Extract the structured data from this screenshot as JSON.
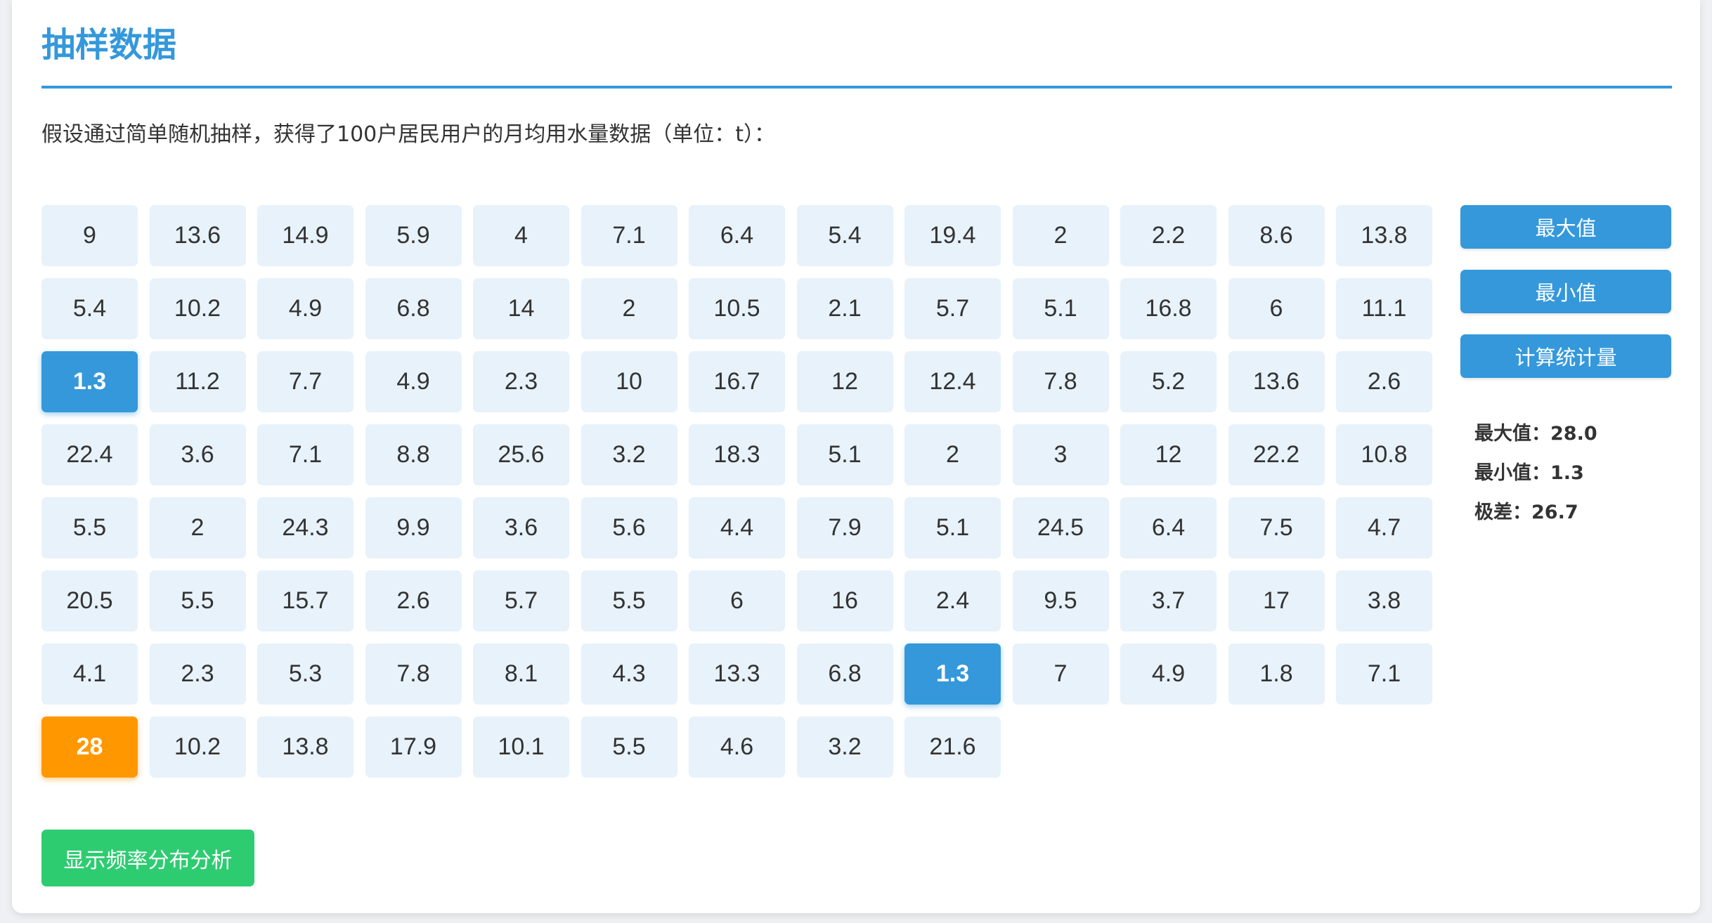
{
  "header": {
    "title": "抽样数据",
    "description": "假设通过简单随机抽样，获得了100户居民用户的月均用水量数据（单位：t）："
  },
  "colors": {
    "accent": "#3498db",
    "max_highlight": "#ff9800",
    "cell_bg": "#e8f2fa",
    "analysis_button": "#2ecc71"
  },
  "data_grid": {
    "columns": 13,
    "cells": [
      {
        "value": "9",
        "state": "normal"
      },
      {
        "value": "13.6",
        "state": "normal"
      },
      {
        "value": "14.9",
        "state": "normal"
      },
      {
        "value": "5.9",
        "state": "normal"
      },
      {
        "value": "4",
        "state": "normal"
      },
      {
        "value": "7.1",
        "state": "normal"
      },
      {
        "value": "6.4",
        "state": "normal"
      },
      {
        "value": "5.4",
        "state": "normal"
      },
      {
        "value": "19.4",
        "state": "normal"
      },
      {
        "value": "2",
        "state": "normal"
      },
      {
        "value": "2.2",
        "state": "normal"
      },
      {
        "value": "8.6",
        "state": "normal"
      },
      {
        "value": "13.8",
        "state": "normal"
      },
      {
        "value": "5.4",
        "state": "normal"
      },
      {
        "value": "10.2",
        "state": "normal"
      },
      {
        "value": "4.9",
        "state": "normal"
      },
      {
        "value": "6.8",
        "state": "normal"
      },
      {
        "value": "14",
        "state": "normal"
      },
      {
        "value": "2",
        "state": "normal"
      },
      {
        "value": "10.5",
        "state": "normal"
      },
      {
        "value": "2.1",
        "state": "normal"
      },
      {
        "value": "5.7",
        "state": "normal"
      },
      {
        "value": "5.1",
        "state": "normal"
      },
      {
        "value": "16.8",
        "state": "normal"
      },
      {
        "value": "6",
        "state": "normal"
      },
      {
        "value": "11.1",
        "state": "normal"
      },
      {
        "value": "1.3",
        "state": "min"
      },
      {
        "value": "11.2",
        "state": "normal"
      },
      {
        "value": "7.7",
        "state": "normal"
      },
      {
        "value": "4.9",
        "state": "normal"
      },
      {
        "value": "2.3",
        "state": "normal"
      },
      {
        "value": "10",
        "state": "normal"
      },
      {
        "value": "16.7",
        "state": "normal"
      },
      {
        "value": "12",
        "state": "normal"
      },
      {
        "value": "12.4",
        "state": "normal"
      },
      {
        "value": "7.8",
        "state": "normal"
      },
      {
        "value": "5.2",
        "state": "normal"
      },
      {
        "value": "13.6",
        "state": "normal"
      },
      {
        "value": "2.6",
        "state": "normal"
      },
      {
        "value": "22.4",
        "state": "normal"
      },
      {
        "value": "3.6",
        "state": "normal"
      },
      {
        "value": "7.1",
        "state": "normal"
      },
      {
        "value": "8.8",
        "state": "normal"
      },
      {
        "value": "25.6",
        "state": "normal"
      },
      {
        "value": "3.2",
        "state": "normal"
      },
      {
        "value": "18.3",
        "state": "normal"
      },
      {
        "value": "5.1",
        "state": "normal"
      },
      {
        "value": "2",
        "state": "normal"
      },
      {
        "value": "3",
        "state": "normal"
      },
      {
        "value": "12",
        "state": "normal"
      },
      {
        "value": "22.2",
        "state": "normal"
      },
      {
        "value": "10.8",
        "state": "normal"
      },
      {
        "value": "5.5",
        "state": "normal"
      },
      {
        "value": "2",
        "state": "normal"
      },
      {
        "value": "24.3",
        "state": "normal"
      },
      {
        "value": "9.9",
        "state": "normal"
      },
      {
        "value": "3.6",
        "state": "normal"
      },
      {
        "value": "5.6",
        "state": "normal"
      },
      {
        "value": "4.4",
        "state": "normal"
      },
      {
        "value": "7.9",
        "state": "normal"
      },
      {
        "value": "5.1",
        "state": "normal"
      },
      {
        "value": "24.5",
        "state": "normal"
      },
      {
        "value": "6.4",
        "state": "normal"
      },
      {
        "value": "7.5",
        "state": "normal"
      },
      {
        "value": "4.7",
        "state": "normal"
      },
      {
        "value": "20.5",
        "state": "normal"
      },
      {
        "value": "5.5",
        "state": "normal"
      },
      {
        "value": "15.7",
        "state": "normal"
      },
      {
        "value": "2.6",
        "state": "normal"
      },
      {
        "value": "5.7",
        "state": "normal"
      },
      {
        "value": "5.5",
        "state": "normal"
      },
      {
        "value": "6",
        "state": "normal"
      },
      {
        "value": "16",
        "state": "normal"
      },
      {
        "value": "2.4",
        "state": "normal"
      },
      {
        "value": "9.5",
        "state": "normal"
      },
      {
        "value": "3.7",
        "state": "normal"
      },
      {
        "value": "17",
        "state": "normal"
      },
      {
        "value": "3.8",
        "state": "normal"
      },
      {
        "value": "4.1",
        "state": "normal"
      },
      {
        "value": "2.3",
        "state": "normal"
      },
      {
        "value": "5.3",
        "state": "normal"
      },
      {
        "value": "7.8",
        "state": "normal"
      },
      {
        "value": "8.1",
        "state": "normal"
      },
      {
        "value": "4.3",
        "state": "normal"
      },
      {
        "value": "13.3",
        "state": "normal"
      },
      {
        "value": "6.8",
        "state": "normal"
      },
      {
        "value": "1.3",
        "state": "min"
      },
      {
        "value": "7",
        "state": "normal"
      },
      {
        "value": "4.9",
        "state": "normal"
      },
      {
        "value": "1.8",
        "state": "normal"
      },
      {
        "value": "7.1",
        "state": "normal"
      },
      {
        "value": "28",
        "state": "max"
      },
      {
        "value": "10.2",
        "state": "normal"
      },
      {
        "value": "13.8",
        "state": "normal"
      },
      {
        "value": "17.9",
        "state": "normal"
      },
      {
        "value": "10.1",
        "state": "normal"
      },
      {
        "value": "5.5",
        "state": "normal"
      },
      {
        "value": "4.6",
        "state": "normal"
      },
      {
        "value": "3.2",
        "state": "normal"
      },
      {
        "value": "21.6",
        "state": "normal"
      }
    ]
  },
  "side_panel": {
    "max_button": "最大值",
    "min_button": "最小值",
    "stats_button": "计算统计量",
    "stats": {
      "max_line": "最大值：28.0",
      "min_line": "最小值：1.3",
      "range_line": "极差：26.7"
    }
  },
  "footer": {
    "freq_button": "显示频率分布分析"
  }
}
